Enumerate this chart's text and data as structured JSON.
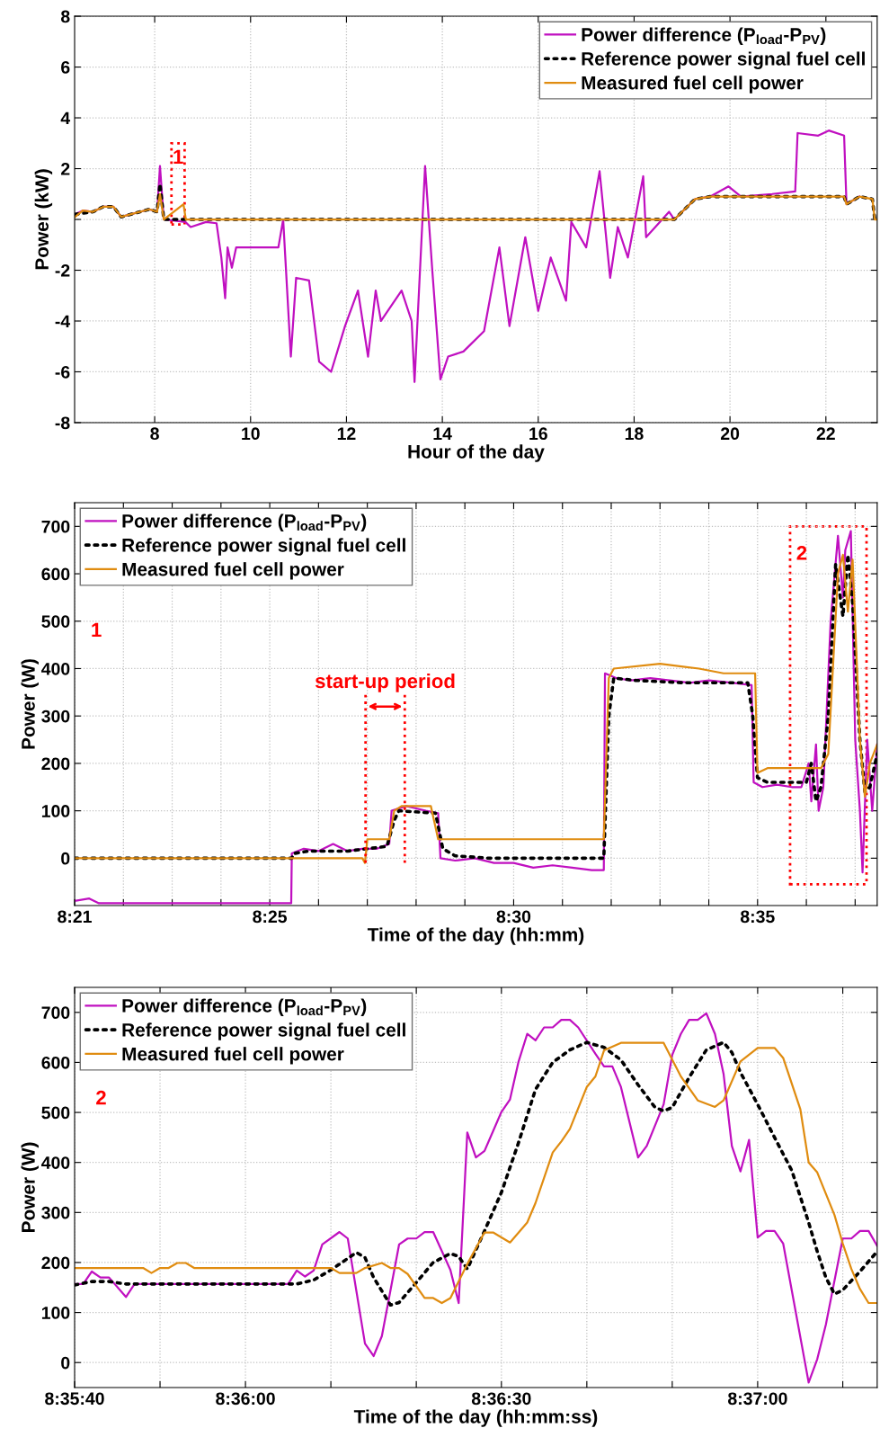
{
  "chart_data": [
    {
      "type": "line",
      "xlabel": "Hour of the day",
      "ylabel": "Power (kW)",
      "xlim": [
        6.33,
        23.07
      ],
      "xticks": [
        8,
        10,
        12,
        14,
        16,
        18,
        20,
        22
      ],
      "ylim": [
        -8,
        8
      ],
      "yticks": [
        -8,
        -6,
        -4,
        -2,
        {
          "value": 0,
          "label": null
        },
        2,
        4,
        6,
        8
      ],
      "grid": true,
      "legend": "top right",
      "series": [
        {
          "name": "Power difference (P$_{load}$-P$_{PV}$)",
          "color": "#c010c0",
          "line_style": "solid",
          "x": [
            6.34,
            6.5,
            6.71,
            6.93,
            7.14,
            7.3,
            7.89,
            8.05,
            8.11,
            8.19,
            8.64,
            8.75,
            9.07,
            9.29,
            9.39,
            9.47,
            9.52,
            9.61,
            9.7,
            10.58,
            10.68,
            10.84,
            10.95,
            11.22,
            11.43,
            11.68,
            11.97,
            12.24,
            12.45,
            12.61,
            12.72,
            13.15,
            13.36,
            13.42,
            13.64,
            13.79,
            13.96,
            14.12,
            14.44,
            14.87,
            15.19,
            15.4,
            15.73,
            16.0,
            16.26,
            16.58,
            16.69,
            17.0,
            17.28,
            17.5,
            17.66,
            17.87,
            18.19,
            18.25,
            18.73,
            18.84,
            19.27,
            19.59,
            19.97,
            20.23,
            20.88,
            21.36,
            21.41,
            21.84,
            22.06,
            22.38,
            22.43,
            22.7
          ],
          "values": [
            0.2,
            0.35,
            0.3,
            0.5,
            0.5,
            0.1,
            0.4,
            0.3,
            2.1,
            0,
            -0.1,
            -0.3,
            -0.1,
            -0.15,
            -1.5,
            -3.1,
            -1.1,
            -1.9,
            -1.1,
            -1.1,
            0,
            -5.4,
            -2.3,
            -2.4,
            -5.6,
            -6.0,
            -4.2,
            -2.8,
            -5.4,
            -2.8,
            -4.0,
            -2.8,
            -4.0,
            -6.4,
            2.1,
            -2.0,
            -6.3,
            -5.4,
            -5.2,
            -4.4,
            -1.1,
            -4.2,
            -0.7,
            -3.6,
            -1.5,
            -3.2,
            -0.1,
            -1.1,
            1.9,
            -2.3,
            -0.3,
            -1.5,
            1.7,
            -0.7,
            0.3,
            0,
            0.8,
            0.9,
            1.3,
            0.9,
            1.0,
            1.1,
            3.4,
            3.3,
            3.5,
            3.3,
            0.6,
            0.9
          ]
        },
        {
          "name": "Reference power signal fuel cell",
          "color": "#000000",
          "line_style": "dotted",
          "x": [
            6.34,
            6.71,
            6.93,
            7.14,
            7.3,
            7.89,
            8.05,
            8.11,
            8.19,
            18.84,
            19.27,
            19.59,
            22.38,
            22.43,
            22.7,
            22.97,
            23.02,
            23.07
          ],
          "values": [
            0.2,
            0.3,
            0.5,
            0.5,
            0.1,
            0.4,
            0.3,
            1.4,
            0,
            0,
            0.8,
            0.9,
            0.9,
            0.6,
            0.9,
            0.8,
            0,
            0
          ]
        },
        {
          "name": "Measured fuel cell power",
          "color": "#e08c10",
          "line_style": "solid",
          "x": [
            6.34,
            6.5,
            6.71,
            6.93,
            7.14,
            7.3,
            7.89,
            8.05,
            8.11,
            8.19,
            8.6,
            8.65,
            18.84,
            19.27,
            19.59,
            22.38,
            22.43,
            22.7,
            22.97,
            23.02,
            23.07
          ],
          "values": [
            0.1,
            0.35,
            0.3,
            0.5,
            0.5,
            0.1,
            0.4,
            0.3,
            1.0,
            0,
            0.6,
            0,
            0,
            0.8,
            0.9,
            0.9,
            0.6,
            0.9,
            0.8,
            0,
            0
          ]
        }
      ],
      "annotations": [
        "1"
      ]
    },
    {
      "type": "line",
      "xlabel": "Time of the day (hh:mm)",
      "ylabel": "Power (W)",
      "xlim": [
        8.35,
        8.6242
      ],
      "xticks": [
        {
          "value": 8.35,
          "label": "8:21"
        },
        {
          "value": 8.36667,
          "label": null
        },
        {
          "value": 8.38333,
          "label": null
        },
        {
          "value": 8.4,
          "label": null
        },
        {
          "value": 8.41667,
          "label": "8:25"
        },
        {
          "value": 8.43333,
          "label": null
        },
        {
          "value": 8.45,
          "label": null
        },
        {
          "value": 8.46667,
          "label": null
        },
        {
          "value": 8.48333,
          "label": null
        },
        {
          "value": 8.5,
          "label": "8:30"
        },
        {
          "value": 8.51667,
          "label": null
        },
        {
          "value": 8.53333,
          "label": null
        },
        {
          "value": 8.55,
          "label": null
        },
        {
          "value": 8.56667,
          "label": null
        },
        {
          "value": 8.58333,
          "label": "8:35"
        },
        {
          "value": 8.6,
          "label": null
        },
        {
          "value": 8.61667,
          "label": null
        }
      ],
      "ylim": [
        -100,
        750
      ],
      "yticks": [
        0,
        100,
        200,
        300,
        400,
        500,
        600,
        700
      ],
      "grid": true,
      "legend": "top left",
      "series": [
        {
          "name": "Power difference (P$_{load}$-P$_{PV}$)",
          "color": "#c010c0",
          "line_style": "solid",
          "x": [
            8.35,
            8.355,
            8.3583,
            8.375,
            8.4,
            8.424,
            8.4242,
            8.4283,
            8.4333,
            8.4383,
            8.4433,
            8.4483,
            8.4533,
            8.4575,
            8.4583,
            8.4633,
            8.4667,
            8.47,
            8.4742,
            8.475,
            8.48,
            8.4867,
            8.4933,
            8.5,
            8.5067,
            8.5133,
            8.52,
            8.5267,
            8.5308,
            8.5312,
            8.535,
            8.54,
            8.5467,
            8.5533,
            8.56,
            8.5667,
            8.575,
            8.5813,
            8.582,
            8.585,
            8.59,
            8.595,
            8.5983,
            8.6008,
            8.6017,
            8.6033,
            8.6042,
            8.6058,
            8.6083,
            8.6108,
            8.6125,
            8.6133,
            8.6152,
            8.6167,
            8.6183,
            8.6192,
            8.6208,
            8.6225,
            8.6242
          ],
          "values": [
            -90,
            -85,
            -95,
            -95,
            -95,
            -95,
            10,
            20,
            15,
            30,
            15,
            20,
            20,
            30,
            100,
            110,
            105,
            100,
            95,
            0,
            -5,
            0,
            -10,
            -10,
            -20,
            -15,
            -20,
            -25,
            -25,
            390,
            380,
            375,
            380,
            375,
            370,
            375,
            370,
            365,
            160,
            150,
            155,
            150,
            150,
            200,
            120,
            240,
            100,
            150,
            500,
            680,
            550,
            650,
            690,
            250,
            100,
            -30,
            250,
            100,
            240
          ]
        },
        {
          "name": "Reference power signal fuel cell",
          "color": "#000000",
          "line_style": "dotted",
          "x": [
            8.35,
            8.4242,
            8.425,
            8.43,
            8.4433,
            8.4567,
            8.4592,
            8.4608,
            8.4733,
            8.4758,
            8.48,
            8.4917,
            8.5308,
            8.5325,
            8.5342,
            8.5417,
            8.5583,
            8.58,
            8.5817,
            8.5833,
            8.5867,
            8.6,
            8.6017,
            8.6033,
            8.605,
            8.6075,
            8.61,
            8.6125,
            8.6142,
            8.6158,
            8.6183,
            8.62,
            8.6217,
            8.6242
          ],
          "values": [
            0,
            0,
            10,
            15,
            15,
            25,
            80,
            100,
            95,
            20,
            5,
            0,
            0,
            300,
            380,
            375,
            370,
            370,
            300,
            170,
            160,
            160,
            200,
            120,
            150,
            300,
            620,
            510,
            640,
            540,
            250,
            140,
            150,
            220
          ]
        },
        {
          "name": "Measured fuel cell power",
          "color": "#e08c10",
          "line_style": "solid",
          "x": [
            8.35,
            8.4483,
            8.4492,
            8.45,
            8.4575,
            8.4592,
            8.4617,
            8.4717,
            8.4742,
            8.5308,
            8.5325,
            8.5342,
            8.55,
            8.5633,
            8.5717,
            8.5825,
            8.5833,
            8.5867,
            8.605,
            8.6075,
            8.6108,
            8.6125,
            8.6142,
            8.6158,
            8.6183,
            8.62,
            8.6217,
            8.6242
          ],
          "values": [
            0,
            0,
            -10,
            40,
            40,
            100,
            110,
            110,
            40,
            40,
            380,
            400,
            410,
            400,
            390,
            390,
            180,
            190,
            190,
            220,
            600,
            640,
            520,
            630,
            250,
            130,
            200,
            240
          ]
        }
      ],
      "ref_lines": [
        {
          "axis": "x",
          "value": 8.4494,
          "color": "#ff0000",
          "line_style": "dotted"
        },
        {
          "axis": "x",
          "value": 8.4628,
          "color": "#ff0000",
          "line_style": "dotted"
        }
      ],
      "annotations": [
        "1",
        "start-up period",
        "2"
      ]
    },
    {
      "type": "line",
      "xlabel": "Time of the day (hh:mm:ss)",
      "ylabel": "Power (W)",
      "xlim": [
        8.59444,
        8.62056
      ],
      "xticks": [
        {
          "value": 8.59444,
          "label": "8:35:40"
        },
        {
          "value": 8.59722,
          "label": null
        },
        {
          "value": 8.6,
          "label": "8:36:00"
        },
        {
          "value": 8.60278,
          "label": null
        },
        {
          "value": 8.60556,
          "label": null
        },
        {
          "value": 8.60833,
          "label": "8:36:30"
        },
        {
          "value": 8.61111,
          "label": null
        },
        {
          "value": 8.61389,
          "label": null
        },
        {
          "value": 8.61667,
          "label": "8:37:00"
        },
        {
          "value": 8.61944,
          "label": null
        }
      ],
      "ylim": [
        -50,
        750
      ],
      "yticks": [
        0,
        100,
        200,
        300,
        400,
        500,
        600,
        700
      ],
      "grid": true,
      "legend": "top left",
      "series": [
        {
          "name": "Power difference (P$_{load}$-P$_{PV}$)",
          "color": "#c010c0",
          "line_style": "solid",
          "x": [
            8.59444,
            8.59472,
            8.595,
            8.59528,
            8.59556,
            8.59611,
            8.59639,
            8.60139,
            8.60167,
            8.60194,
            8.60222,
            8.6025,
            8.60306,
            8.60333,
            8.60389,
            8.60417,
            8.60444,
            8.605,
            8.60528,
            8.60556,
            8.60583,
            8.60611,
            8.60667,
            8.60694,
            8.60722,
            8.6075,
            8.60778,
            8.60833,
            8.60861,
            8.60889,
            8.60917,
            8.60944,
            8.60972,
            8.61,
            8.61028,
            8.61056,
            8.61083,
            8.61139,
            8.61167,
            8.61194,
            8.61222,
            8.61278,
            8.61306,
            8.61361,
            8.61389,
            8.61417,
            8.61444,
            8.61472,
            8.615,
            8.61528,
            8.61556,
            8.61583,
            8.61611,
            8.61639,
            8.61667,
            8.61694,
            8.61722,
            8.6175,
            8.61833,
            8.61861,
            8.61889,
            8.61944,
            8.61972,
            8.62,
            8.62028,
            8.62056
          ],
          "values": [
            157,
            157,
            182,
            170,
            170,
            131,
            157,
            157,
            184,
            172,
            184,
            236,
            261,
            248,
            38,
            13,
            53,
            236,
            248,
            248,
            261,
            261,
            185,
            119,
            460,
            410,
            423,
            501,
            526,
            602,
            657,
            644,
            670,
            670,
            685,
            685,
            670,
            617,
            592,
            592,
            551,
            410,
            433,
            516,
            615,
            657,
            685,
            685,
            698,
            657,
            577,
            433,
            382,
            445,
            250,
            263,
            263,
            238,
            -40,
            7,
            76,
            248,
            248,
            263,
            263,
            233
          ]
        },
        {
          "name": "Reference power signal fuel cell",
          "color": "#000000",
          "line_style": "dotted",
          "x": [
            8.59444,
            8.595,
            8.59556,
            8.59611,
            8.60167,
            8.60222,
            8.60278,
            8.60361,
            8.60389,
            8.60417,
            8.60472,
            8.605,
            8.60556,
            8.60611,
            8.60667,
            8.60694,
            8.60722,
            8.60778,
            8.60833,
            8.60889,
            8.60944,
            8.61,
            8.61056,
            8.61111,
            8.61167,
            8.61222,
            8.61278,
            8.61333,
            8.61361,
            8.61389,
            8.61444,
            8.615,
            8.61556,
            8.61583,
            8.61611,
            8.61667,
            8.61722,
            8.61778,
            8.61833,
            8.61861,
            8.61889,
            8.61917,
            8.61944,
            8.62,
            8.62056
          ],
          "values": [
            155,
            162,
            162,
            157,
            157,
            165,
            185,
            220,
            210,
            170,
            115,
            120,
            160,
            200,
            218,
            212,
            187,
            263,
            340,
            440,
            546,
            600,
            625,
            640,
            630,
            605,
            555,
            510,
            503,
            510,
            570,
            625,
            640,
            620,
            580,
            516,
            450,
            384,
            280,
            222,
            170,
            137,
            145,
            182,
            222
          ]
        },
        {
          "name": "Measured fuel cell power",
          "color": "#e08c10",
          "line_style": "solid",
          "x": [
            8.59444,
            8.59667,
            8.59694,
            8.59722,
            8.5975,
            8.59778,
            8.59806,
            8.59833,
            8.60278,
            8.60306,
            8.60361,
            8.60389,
            8.60444,
            8.60472,
            8.605,
            8.60528,
            8.60583,
            8.60611,
            8.60639,
            8.60667,
            8.60722,
            8.60778,
            8.60806,
            8.60861,
            8.60917,
            8.60944,
            8.61,
            8.61028,
            8.61056,
            8.61111,
            8.61139,
            8.61167,
            8.61222,
            8.61361,
            8.61417,
            8.61472,
            8.61528,
            8.61556,
            8.61611,
            8.61667,
            8.61722,
            8.6175,
            8.61806,
            8.61833,
            8.61861,
            8.61917,
            8.61944,
            8.61972,
            8.62,
            8.62028,
            8.62056
          ],
          "values": [
            189,
            189,
            179,
            189,
            189,
            199,
            199,
            189,
            189,
            179,
            179,
            189,
            199,
            189,
            189,
            177,
            129,
            129,
            119,
            129,
            197,
            260,
            260,
            240,
            280,
            319,
            420,
            442,
            467,
            551,
            572,
            624,
            639,
            639,
            572,
            524,
            511,
            524,
            602,
            629,
            629,
            609,
            506,
            400,
            380,
            295,
            238,
            187,
            147,
            119,
            119
          ]
        }
      ],
      "annotations": [
        "2"
      ]
    }
  ]
}
